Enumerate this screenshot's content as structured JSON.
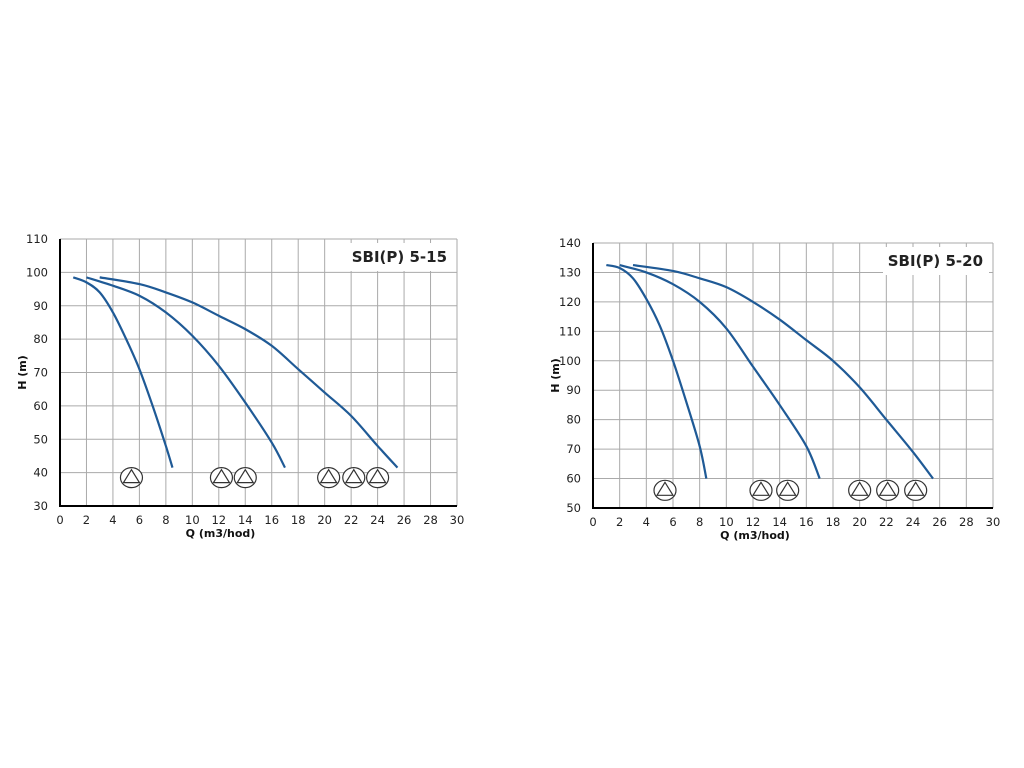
{
  "chart_data": [
    {
      "type": "line",
      "title": "SBI(P) 5-15",
      "xlabel": "Q (m3/hod)",
      "ylabel": "H (m)",
      "xlim": [
        0,
        30
      ],
      "ylim": [
        30,
        110
      ],
      "xticks": [
        "0",
        "2",
        "4",
        "6",
        "8",
        "10",
        "12",
        "14",
        "16",
        "18",
        "20",
        "22",
        "24",
        "26",
        "28",
        "30"
      ],
      "yticks": [
        "30",
        "40",
        "50",
        "60",
        "70",
        "80",
        "90",
        "100",
        "110"
      ],
      "grid": true,
      "line_color": "#1f5a96",
      "series": [
        {
          "x": [
            1,
            2,
            3,
            4,
            5,
            6,
            7,
            8,
            8.5
          ],
          "y": [
            98.5,
            97,
            94,
            88,
            80,
            71,
            60,
            48,
            41.5
          ]
        },
        {
          "x": [
            2,
            4,
            6,
            8,
            10,
            12,
            14,
            16,
            17
          ],
          "y": [
            98.5,
            96,
            93,
            88,
            81,
            72,
            61,
            49,
            41.5
          ]
        },
        {
          "x": [
            3,
            6,
            8,
            10,
            12,
            14,
            16,
            18,
            20,
            22,
            24,
            25.5
          ],
          "y": [
            98.5,
            96.5,
            94,
            91,
            87,
            83,
            78,
            71,
            64,
            57,
            48,
            41.5
          ]
        }
      ],
      "pump_markers": {
        "icon": "pump-circle-triangle-icon",
        "y": 38.5,
        "groups": [
          [
            5.4
          ],
          [
            12.2,
            14
          ],
          [
            20.3,
            22.2,
            24
          ]
        ]
      }
    },
    {
      "type": "line",
      "title": "SBI(P) 5-20",
      "xlabel": "Q (m3/hod)",
      "ylabel": "H (m)",
      "xlim": [
        0,
        30
      ],
      "ylim": [
        50,
        140
      ],
      "xticks": [
        "0",
        "2",
        "4",
        "6",
        "8",
        "10",
        "12",
        "14",
        "16",
        "18",
        "20",
        "22",
        "24",
        "26",
        "28",
        "30"
      ],
      "yticks": [
        "50",
        "60",
        "70",
        "80",
        "90",
        "100",
        "110",
        "120",
        "130",
        "140"
      ],
      "grid": true,
      "line_color": "#1f5a96",
      "series": [
        {
          "x": [
            1,
            2,
            3,
            4,
            5,
            6,
            7,
            8,
            8.5
          ],
          "y": [
            132.5,
            131.5,
            128,
            121,
            112,
            100,
            86,
            71,
            60
          ]
        },
        {
          "x": [
            2,
            4,
            6,
            8,
            10,
            12,
            14,
            16,
            17
          ],
          "y": [
            132.5,
            130,
            126,
            120,
            111,
            98,
            85,
            71,
            60
          ]
        },
        {
          "x": [
            3,
            6,
            8,
            10,
            12,
            14,
            16,
            18,
            20,
            22,
            24,
            25.5
          ],
          "y": [
            132.5,
            130.5,
            128,
            125,
            120,
            114,
            107,
            100,
            91,
            80,
            69,
            60
          ]
        }
      ],
      "pump_markers": {
        "icon": "pump-circle-triangle-icon",
        "y": 56,
        "groups": [
          [
            5.4
          ],
          [
            12.6,
            14.6
          ],
          [
            20,
            22.1,
            24.2
          ]
        ]
      }
    }
  ]
}
